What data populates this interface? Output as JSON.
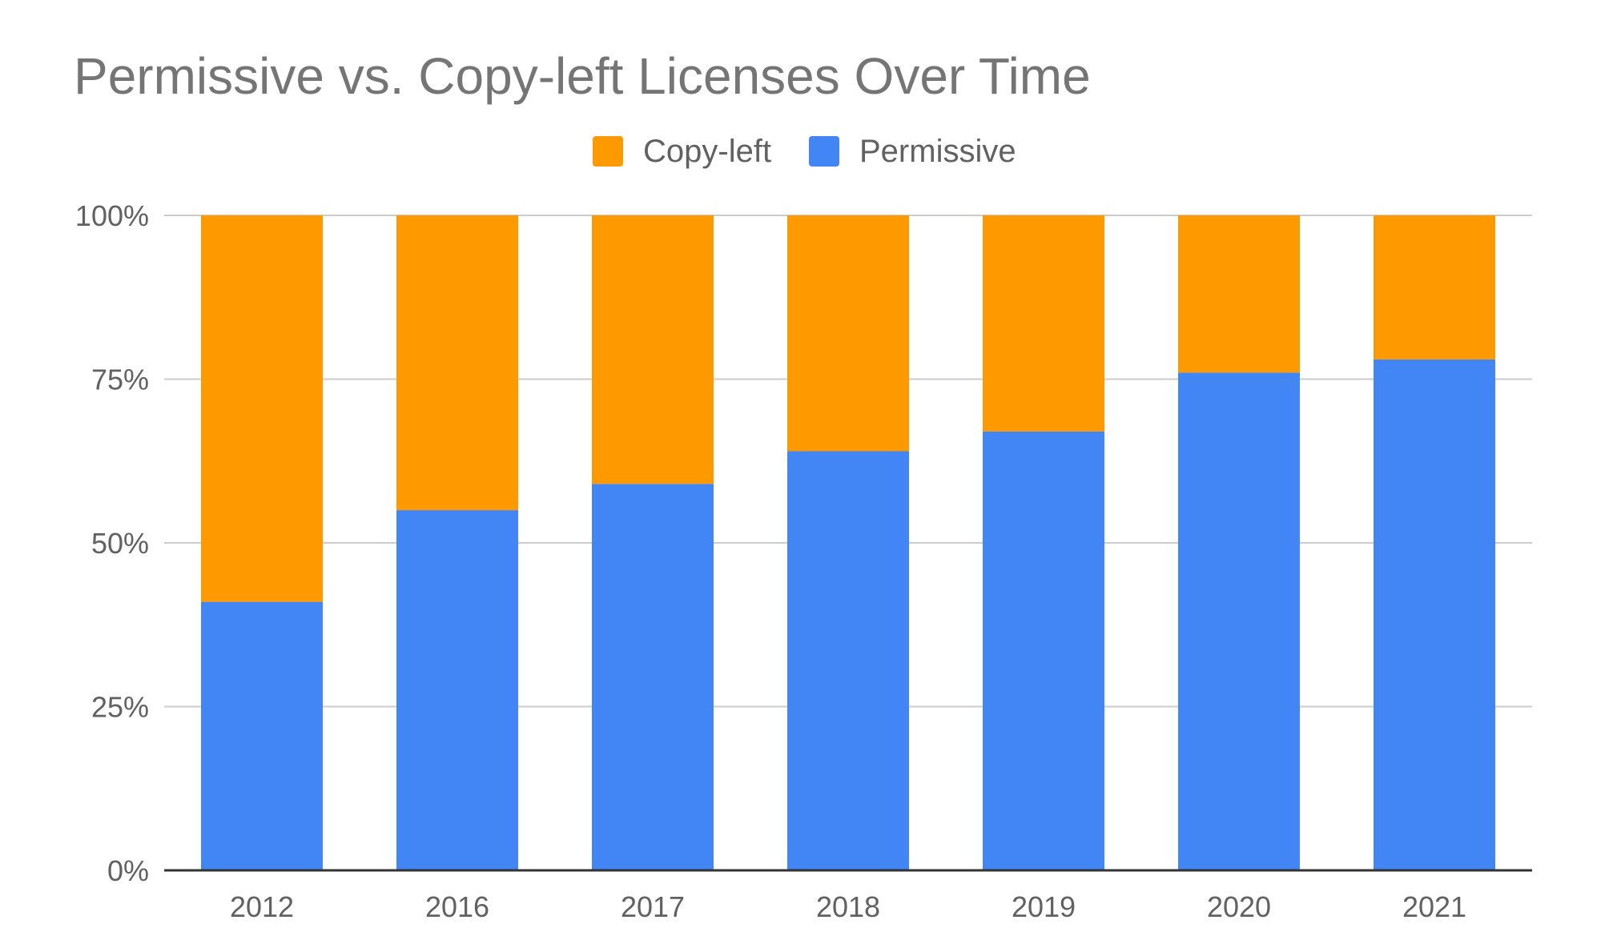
{
  "chart_data": {
    "type": "bar",
    "stacked": true,
    "title": "Permissive vs. Copy-left Licenses Over Time",
    "categories": [
      "2012",
      "2016",
      "2017",
      "2018",
      "2019",
      "2020",
      "2021"
    ],
    "series": [
      {
        "name": "Permissive",
        "values": [
          41,
          55,
          59,
          64,
          67,
          76,
          78
        ],
        "color": "#4285F4"
      },
      {
        "name": "Copy-left",
        "values": [
          59,
          45,
          41,
          36,
          33,
          24,
          22
        ],
        "color": "#FF9900"
      }
    ],
    "legend_order": [
      "Copy-left",
      "Permissive"
    ],
    "legend_position": "top",
    "y_ticks": [
      "0%",
      "25%",
      "50%",
      "75%",
      "100%"
    ],
    "ylim": [
      0,
      100
    ],
    "grid": true,
    "colors": {
      "gridline": "#cccccc",
      "axis": "#333333",
      "text": "#616161",
      "title": "#757575"
    }
  }
}
